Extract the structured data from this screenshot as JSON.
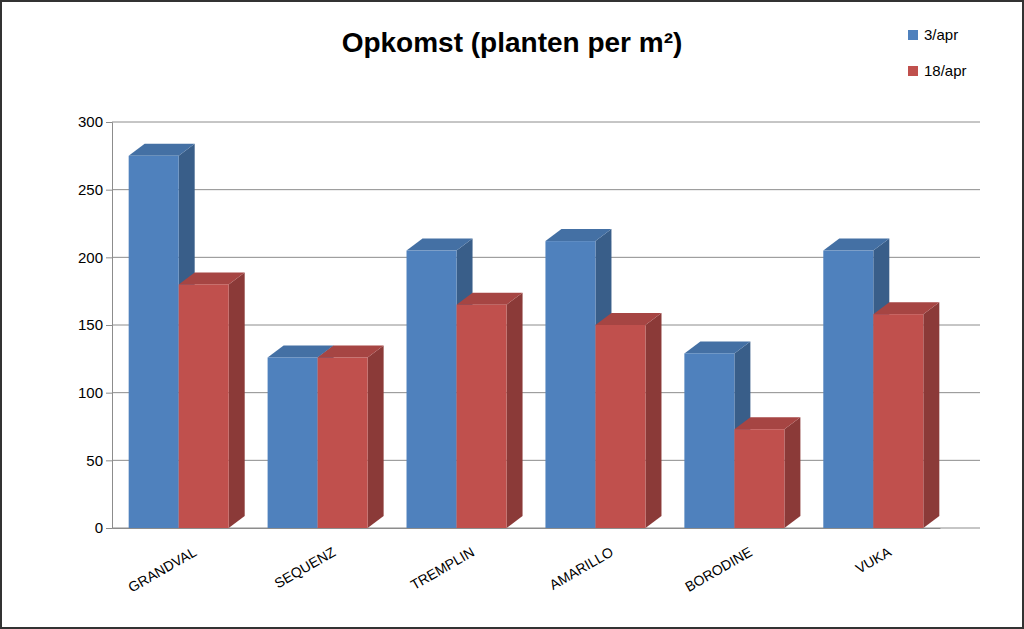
{
  "chart_data": {
    "type": "bar",
    "title": "Opkomst (planten per m²)",
    "categories": [
      "GRANDVAL",
      "SEQUENZ",
      "TREMPLIN",
      "AMARILLO",
      "BORODINE",
      "VUKA"
    ],
    "series": [
      {
        "name": "3/apr",
        "color": "#4f81bd",
        "values": [
          275,
          126,
          205,
          212,
          129,
          205
        ]
      },
      {
        "name": "18/apr",
        "color": "#c0504d",
        "values": [
          180,
          126,
          165,
          150,
          73,
          158
        ]
      }
    ],
    "ylim": [
      0,
      300
    ],
    "yticks": [
      0,
      50,
      100,
      150,
      200,
      250,
      300
    ],
    "grid": true,
    "legend": "top-right"
  }
}
